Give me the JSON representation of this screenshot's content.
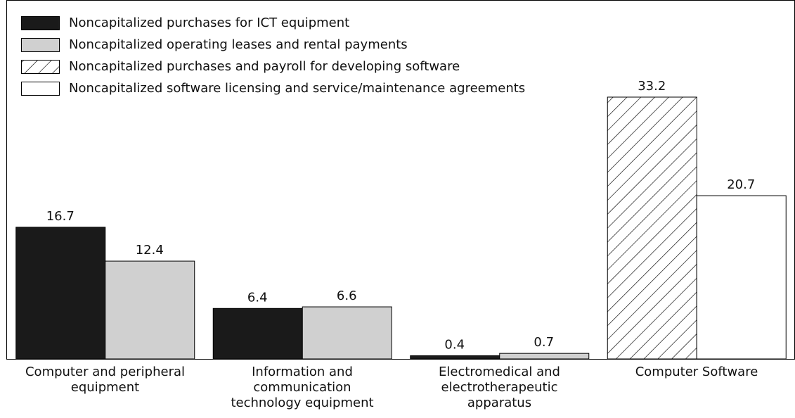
{
  "chart_data": {
    "type": "bar",
    "categories": [
      "Computer and peripheral\nequipment",
      "Information and\ncommunication\ntechnology equipment",
      "Electromedical and\nelectrotherapeutic\napparatus",
      "Computer Software"
    ],
    "series": [
      {
        "name": "Noncapitalized purchases for ICT equipment",
        "color": "#1a1a1a",
        "values": [
          16.7,
          6.4,
          0.4,
          null
        ]
      },
      {
        "name": "Noncapitalized operating leases and rental payments",
        "color": "#d0d0d0",
        "values": [
          12.4,
          6.6,
          0.7,
          null
        ]
      },
      {
        "name": "Noncapitalized purchases and payroll for developing software",
        "color": "#ffffff",
        "hatch": true,
        "values": [
          null,
          null,
          null,
          33.2
        ]
      },
      {
        "name": "Noncapitalized software licensing and service/maintenance agreements",
        "color": "#ffffff",
        "values": [
          null,
          null,
          null,
          20.7
        ]
      }
    ],
    "legend": "upper left"
  }
}
